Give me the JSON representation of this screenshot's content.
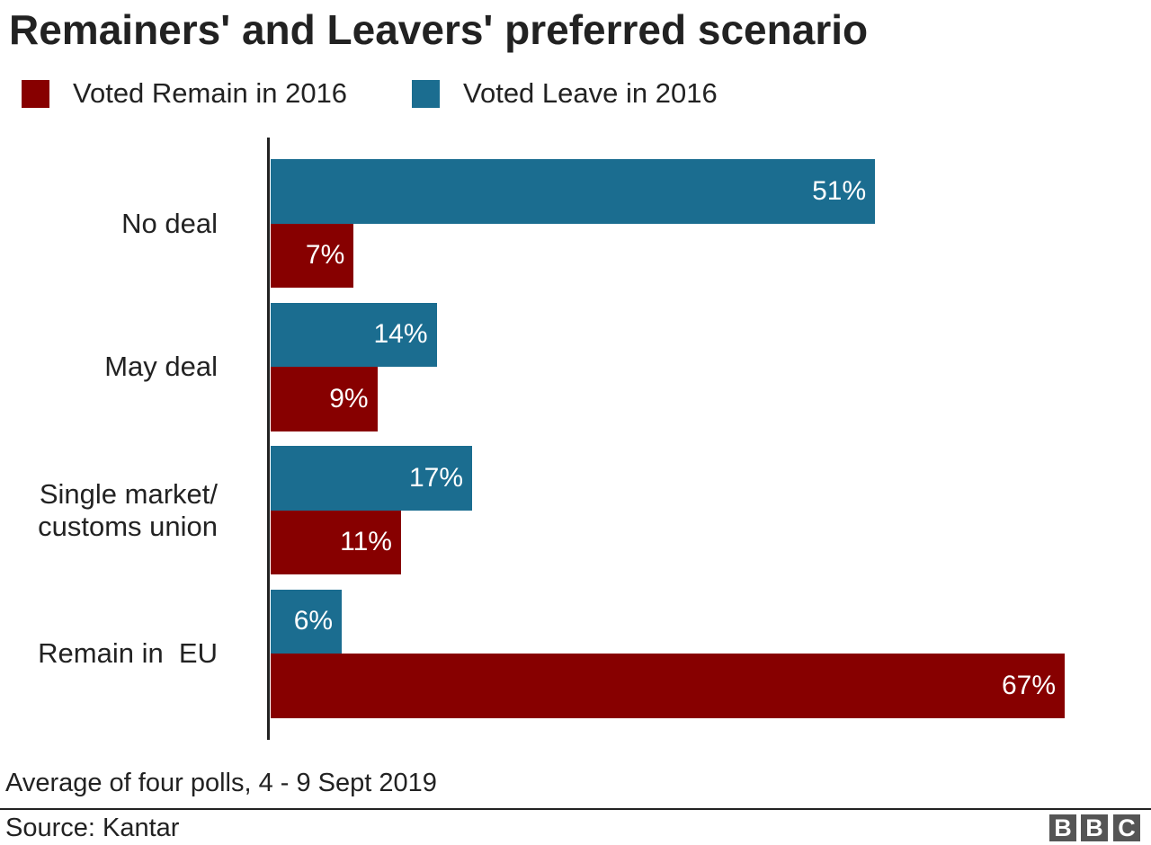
{
  "chart_data": {
    "type": "bar",
    "orientation": "horizontal",
    "title": "Remainers' and Leavers' preferred scenario",
    "categories": [
      "No deal",
      "May deal",
      "Single market/\ncustoms union",
      "Remain in  EU"
    ],
    "series": [
      {
        "name": "Voted Leave in 2016",
        "color": "#1b6d90",
        "values": [
          51,
          14,
          17,
          6
        ],
        "labels": [
          "51%",
          "14%",
          "17%",
          "6%"
        ]
      },
      {
        "name": "Voted Remain in 2016",
        "color": "#870000",
        "values": [
          7,
          9,
          11,
          67
        ],
        "labels": [
          "7%",
          "9%",
          "11%",
          "67%"
        ]
      }
    ],
    "legend": [
      {
        "name": "Voted Remain in 2016",
        "color": "#870000"
      },
      {
        "name": "Voted Leave in 2016",
        "color": "#1b6d90"
      }
    ],
    "legend_placement": "top-left",
    "xlim": [
      0,
      70
    ],
    "unit": "%",
    "grid": false
  },
  "footer": {
    "note": "Average of four polls, 4 - 9 Sept 2019",
    "source": "Source: Kantar",
    "logo": "BBC"
  }
}
